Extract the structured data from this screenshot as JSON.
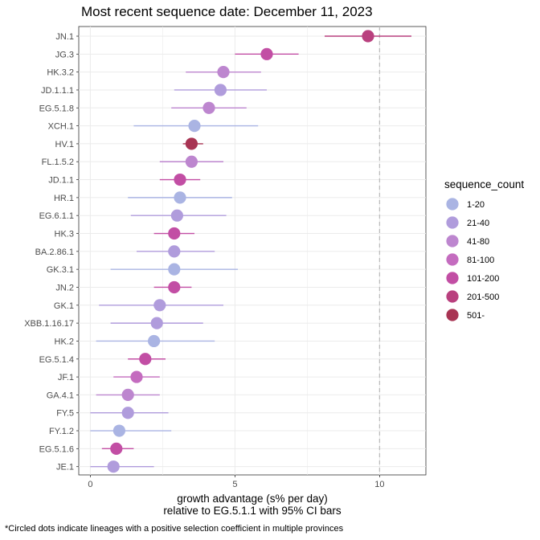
{
  "chart_data": {
    "type": "scatter",
    "title": "Most recent sequence date: December 11, 2023",
    "xlabel": [
      "growth advantage (s% per day)",
      "relative to  EG.5.1.1  with 95% CI bars"
    ],
    "ylabel": "",
    "xlim": [
      -0.4,
      11.6
    ],
    "xticks": [
      0,
      5,
      10
    ],
    "reference_line_x": 10.0,
    "grid": true,
    "legend_position": "right",
    "footnote": "*Circled dots indicate lineages with a positive selection coefficient in multiple provinces",
    "legend": {
      "title": "sequence_count",
      "items": [
        {
          "label": "1-20",
          "color": "#aab4e3"
        },
        {
          "label": "21-40",
          "color": "#b09cdc"
        },
        {
          "label": "41-80",
          "color": "#bd86cf"
        },
        {
          "label": "81-100",
          "color": "#c46cbf"
        },
        {
          "label": "101-200",
          "color": "#c24ea4"
        },
        {
          "label": "201-500",
          "color": "#b9407e"
        },
        {
          "label": "501-",
          "color": "#a83453"
        }
      ]
    },
    "points": [
      {
        "lineage": "JN.1",
        "x": 9.6,
        "lo": 8.1,
        "hi": 11.1,
        "group": "201-500"
      },
      {
        "lineage": "JG.3",
        "x": 6.1,
        "lo": 5.0,
        "hi": 7.2,
        "group": "101-200"
      },
      {
        "lineage": "HK.3.2",
        "x": 4.6,
        "lo": 3.3,
        "hi": 5.9,
        "group": "41-80"
      },
      {
        "lineage": "JD.1.1.1",
        "x": 4.5,
        "lo": 2.9,
        "hi": 6.1,
        "group": "21-40"
      },
      {
        "lineage": "EG.5.1.8",
        "x": 4.1,
        "lo": 2.8,
        "hi": 5.4,
        "group": "41-80"
      },
      {
        "lineage": "XCH.1",
        "x": 3.6,
        "lo": 1.5,
        "hi": 5.8,
        "group": "1-20"
      },
      {
        "lineage": "HV.1",
        "x": 3.5,
        "lo": 3.2,
        "hi": 3.9,
        "group": "501-"
      },
      {
        "lineage": "FL.1.5.2",
        "x": 3.5,
        "lo": 2.4,
        "hi": 4.6,
        "group": "41-80"
      },
      {
        "lineage": "JD.1.1",
        "x": 3.1,
        "lo": 2.4,
        "hi": 3.8,
        "group": "101-200"
      },
      {
        "lineage": "HR.1",
        "x": 3.1,
        "lo": 1.3,
        "hi": 4.9,
        "group": "1-20"
      },
      {
        "lineage": "EG.6.1.1",
        "x": 3.0,
        "lo": 1.4,
        "hi": 4.7,
        "group": "21-40"
      },
      {
        "lineage": "HK.3",
        "x": 2.9,
        "lo": 2.2,
        "hi": 3.6,
        "group": "101-200"
      },
      {
        "lineage": "BA.2.86.1",
        "x": 2.9,
        "lo": 1.6,
        "hi": 4.3,
        "group": "21-40"
      },
      {
        "lineage": "GK.3.1",
        "x": 2.9,
        "lo": 0.7,
        "hi": 5.1,
        "group": "1-20"
      },
      {
        "lineage": "JN.2",
        "x": 2.9,
        "lo": 2.2,
        "hi": 3.5,
        "group": "101-200"
      },
      {
        "lineage": "GK.1",
        "x": 2.4,
        "lo": 0.3,
        "hi": 4.6,
        "group": "21-40"
      },
      {
        "lineage": "XBB.1.16.17",
        "x": 2.3,
        "lo": 0.7,
        "hi": 3.9,
        "group": "21-40"
      },
      {
        "lineage": "HK.2",
        "x": 2.2,
        "lo": 0.2,
        "hi": 4.3,
        "group": "1-20"
      },
      {
        "lineage": "EG.5.1.4",
        "x": 1.9,
        "lo": 1.3,
        "hi": 2.6,
        "group": "101-200"
      },
      {
        "lineage": "JF.1",
        "x": 1.6,
        "lo": 0.8,
        "hi": 2.4,
        "group": "81-100"
      },
      {
        "lineage": "GA.4.1",
        "x": 1.3,
        "lo": 0.2,
        "hi": 2.4,
        "group": "41-80"
      },
      {
        "lineage": "FY.5",
        "x": 1.3,
        "lo": 0.0,
        "hi": 2.7,
        "group": "21-40"
      },
      {
        "lineage": "FY.1.2",
        "x": 1.0,
        "lo": 0.0,
        "hi": 2.8,
        "group": "1-20"
      },
      {
        "lineage": "EG.5.1.6",
        "x": 0.9,
        "lo": 0.4,
        "hi": 1.5,
        "group": "101-200"
      },
      {
        "lineage": "JE.1",
        "x": 0.8,
        "lo": 0.0,
        "hi": 2.2,
        "group": "21-40"
      }
    ]
  }
}
